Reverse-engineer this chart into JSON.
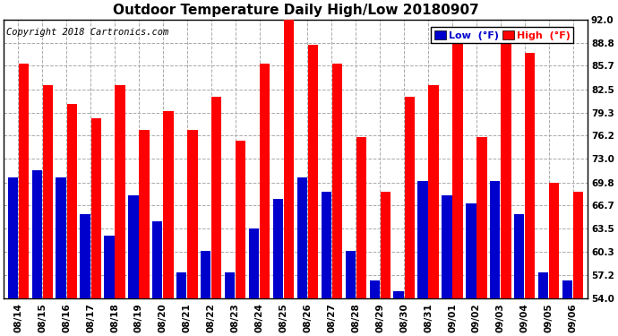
{
  "title": "Outdoor Temperature Daily High/Low 20180907",
  "copyright": "Copyright 2018 Cartronics.com",
  "legend_low": "Low  (°F)",
  "legend_high": "High  (°F)",
  "dates": [
    "08/14",
    "08/15",
    "08/16",
    "08/17",
    "08/18",
    "08/19",
    "08/20",
    "08/21",
    "08/22",
    "08/23",
    "08/24",
    "08/25",
    "08/26",
    "08/27",
    "08/28",
    "08/29",
    "08/30",
    "08/31",
    "09/01",
    "09/02",
    "09/03",
    "09/04",
    "09/05",
    "09/06"
  ],
  "highs": [
    86.0,
    83.0,
    80.5,
    78.5,
    83.0,
    77.0,
    79.5,
    77.0,
    81.5,
    75.5,
    86.0,
    92.0,
    88.5,
    86.0,
    76.0,
    68.5,
    81.5,
    83.0,
    89.0,
    76.0,
    91.0,
    87.5,
    69.8,
    68.5
  ],
  "lows": [
    70.5,
    71.5,
    70.5,
    65.5,
    62.5,
    68.0,
    64.5,
    57.5,
    60.5,
    57.5,
    63.5,
    67.5,
    70.5,
    68.5,
    60.5,
    56.5,
    55.0,
    70.0,
    68.0,
    67.0,
    70.0,
    65.5,
    57.5,
    56.5
  ],
  "ylim": [
    54.0,
    92.0
  ],
  "yticks": [
    54.0,
    57.2,
    60.3,
    63.5,
    66.7,
    69.8,
    73.0,
    76.2,
    79.3,
    82.5,
    85.7,
    88.8,
    92.0
  ],
  "color_high": "#ff0000",
  "color_low": "#0000cc",
  "background_color": "#ffffff",
  "grid_color": "#aaaaaa",
  "title_fontsize": 11,
  "copyright_fontsize": 7.5,
  "tick_fontsize": 7.5,
  "legend_fontsize": 8
}
